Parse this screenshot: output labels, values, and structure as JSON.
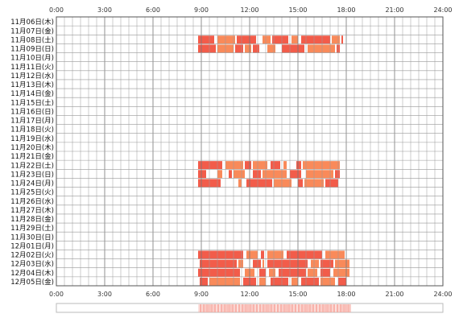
{
  "chart_data": {
    "type": "heatmap",
    "x_ticks": [
      "0:00",
      "3:00",
      "6:00",
      "9:00",
      "12:00",
      "15:00",
      "18:00",
      "21:00",
      "24:00"
    ],
    "x_range_hours": [
      0,
      24
    ],
    "rows": [
      {
        "label": "11月06日(木)",
        "active": []
      },
      {
        "label": "11月07日(金)",
        "active": []
      },
      {
        "label": "11月08日(土)",
        "active": [
          [
            8.8,
            9.8
          ],
          [
            10.0,
            11.1
          ],
          [
            11.2,
            12.4
          ],
          [
            12.8,
            13.3
          ],
          [
            13.4,
            14.4
          ],
          [
            14.6,
            15.0
          ],
          [
            15.2,
            17.0
          ],
          [
            17.1,
            17.6
          ],
          [
            17.7,
            17.8
          ]
        ]
      },
      {
        "label": "11月09日(日)",
        "active": [
          [
            8.8,
            9.9
          ],
          [
            10.0,
            11.0
          ],
          [
            11.1,
            11.6
          ],
          [
            11.7,
            12.1
          ],
          [
            12.2,
            12.6
          ],
          [
            13.1,
            13.6
          ],
          [
            14.0,
            15.4
          ],
          [
            15.6,
            17.3
          ],
          [
            17.4,
            17.6
          ]
        ]
      },
      {
        "label": "11月10日(月)",
        "active": []
      },
      {
        "label": "11月11日(火)",
        "active": []
      },
      {
        "label": "11月12日(水)",
        "active": []
      },
      {
        "label": "11月13日(木)",
        "active": []
      },
      {
        "label": "11月14日(金)",
        "active": []
      },
      {
        "label": "11月15日(土)",
        "active": []
      },
      {
        "label": "11月16日(日)",
        "active": []
      },
      {
        "label": "11月17日(月)",
        "active": []
      },
      {
        "label": "11月18日(火)",
        "active": []
      },
      {
        "label": "11月19日(水)",
        "active": []
      },
      {
        "label": "11月20日(木)",
        "active": []
      },
      {
        "label": "11月21日(金)",
        "active": []
      },
      {
        "label": "11月22日(土)",
        "active": [
          [
            8.8,
            10.3
          ],
          [
            10.5,
            11.6
          ],
          [
            11.7,
            12.1
          ],
          [
            12.2,
            13.1
          ],
          [
            13.3,
            13.9
          ],
          [
            14.1,
            14.3
          ],
          [
            14.9,
            15.2
          ],
          [
            15.3,
            17.6
          ]
        ]
      },
      {
        "label": "11月23日(日)",
        "active": [
          [
            8.8,
            9.3
          ],
          [
            10.0,
            10.3
          ],
          [
            10.7,
            10.9
          ],
          [
            11.0,
            11.7
          ],
          [
            12.2,
            12.7
          ],
          [
            12.8,
            14.3
          ],
          [
            14.5,
            15.2
          ],
          [
            15.5,
            17.2
          ],
          [
            17.3,
            17.6
          ]
        ]
      },
      {
        "label": "11月24日(月)",
        "active": [
          [
            8.8,
            10.2
          ],
          [
            11.3,
            11.5
          ],
          [
            11.8,
            13.4
          ],
          [
            13.5,
            14.6
          ],
          [
            15.0,
            15.3
          ],
          [
            15.4,
            16.6
          ],
          [
            16.7,
            17.5
          ]
        ]
      },
      {
        "label": "11月25日(火)",
        "active": []
      },
      {
        "label": "11月26日(水)",
        "active": []
      },
      {
        "label": "11月27日(木)",
        "active": []
      },
      {
        "label": "11月28日(金)",
        "active": []
      },
      {
        "label": "11月29日(土)",
        "active": []
      },
      {
        "label": "11月30日(日)",
        "active": []
      },
      {
        "label": "12月01日(月)",
        "active": []
      },
      {
        "label": "12月02日(火)",
        "active": [
          [
            8.8,
            11.6
          ],
          [
            11.8,
            12.5
          ],
          [
            12.7,
            12.9
          ],
          [
            13.1,
            14.1
          ],
          [
            14.3,
            16.5
          ],
          [
            16.7,
            17.9
          ]
        ]
      },
      {
        "label": "12月03日(水)",
        "active": [
          [
            8.9,
            11.2
          ],
          [
            11.3,
            11.6
          ],
          [
            12.2,
            12.7
          ],
          [
            12.8,
            12.9
          ],
          [
            13.1,
            15.6
          ],
          [
            15.8,
            16.3
          ],
          [
            16.4,
            17.2
          ],
          [
            17.3,
            18.2
          ]
        ]
      },
      {
        "label": "12月04日(木)",
        "active": [
          [
            8.8,
            11.4
          ],
          [
            11.7,
            12.3
          ],
          [
            12.6,
            13.0
          ],
          [
            13.2,
            13.6
          ],
          [
            13.8,
            15.5
          ],
          [
            15.6,
            16.2
          ],
          [
            16.4,
            17.0
          ],
          [
            17.2,
            18.2
          ]
        ]
      },
      {
        "label": "12月05日(金)",
        "active": [
          [
            8.9,
            9.4
          ],
          [
            9.5,
            11.4
          ],
          [
            11.6,
            12.4
          ],
          [
            12.6,
            13.0
          ],
          [
            13.3,
            14.4
          ],
          [
            14.6,
            15.0
          ],
          [
            15.2,
            16.3
          ],
          [
            16.4,
            17.3
          ],
          [
            17.5,
            18.0
          ]
        ]
      }
    ],
    "summary_bar_range_hours": [
      8.8,
      18.3
    ],
    "grid": true,
    "colors": {
      "active_a": "#f25c4a",
      "active_b": "#f98a5a",
      "grid": "#999999",
      "border": "#555555",
      "summary_border": "#bbbbbb",
      "summary_fill": "#f7a9a0"
    }
  }
}
